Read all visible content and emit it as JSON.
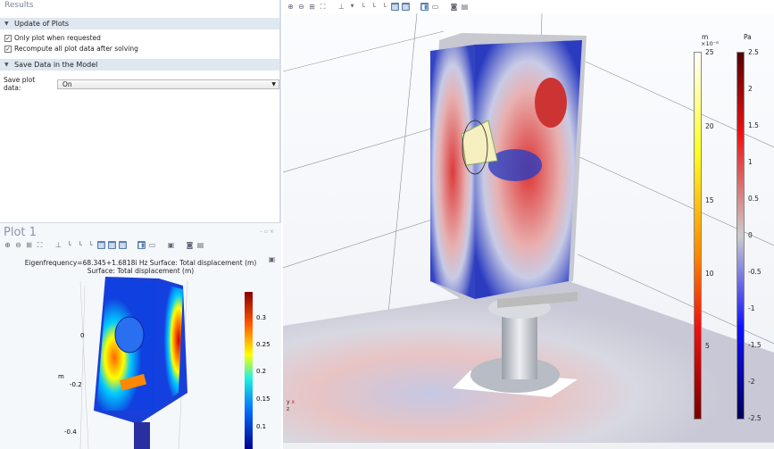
{
  "settings": {
    "section_label": "Results",
    "update_of_plots": {
      "title": "Update of Plots",
      "options": [
        {
          "label": "Only plot when requested",
          "checked": true
        },
        {
          "label": "Recompute all plot data after solving",
          "checked": true
        }
      ]
    },
    "save_data": {
      "title": "Save Data in the Model",
      "label": "Save plot data:",
      "value": "On"
    }
  },
  "plot1": {
    "title": "Plot 1",
    "caption_line1": "Eigenfrequency=68.345+1.6818i Hz  Surface: Total displacement (m)",
    "caption_line2": "Surface: Total displacement (m)",
    "axis_unit": "m",
    "axis_ticks": [
      "0",
      "-0.2",
      "-0.4"
    ],
    "colorbar_ticks": [
      "0.3",
      "0.25",
      "0.2",
      "0.15",
      "0.1"
    ]
  },
  "main_view": {
    "displacement_legend": {
      "unit": "m",
      "scale": "×10⁻⁸",
      "ticks": [
        "25",
        "20",
        "15",
        "10",
        "5"
      ]
    },
    "pressure_legend": {
      "unit": "Pa",
      "ticks": [
        "2.5",
        "2",
        "1.5",
        "1",
        "0.5",
        "0",
        "-0.5",
        "-1",
        "-1.5",
        "-2",
        "-2.5"
      ]
    },
    "axes_triad": {
      "x": "x",
      "y": "y",
      "z": "z"
    }
  },
  "toolbar_icons": [
    "zoom-in",
    "zoom-out",
    "zoom-box",
    "zoom-extents",
    "axis-orientation",
    "go-to-xy",
    "go-to-yz",
    "go-to-zx",
    "scene-light",
    "transparency",
    "wireframe",
    "grid",
    "lock-camera",
    "screenshot",
    "print"
  ]
}
